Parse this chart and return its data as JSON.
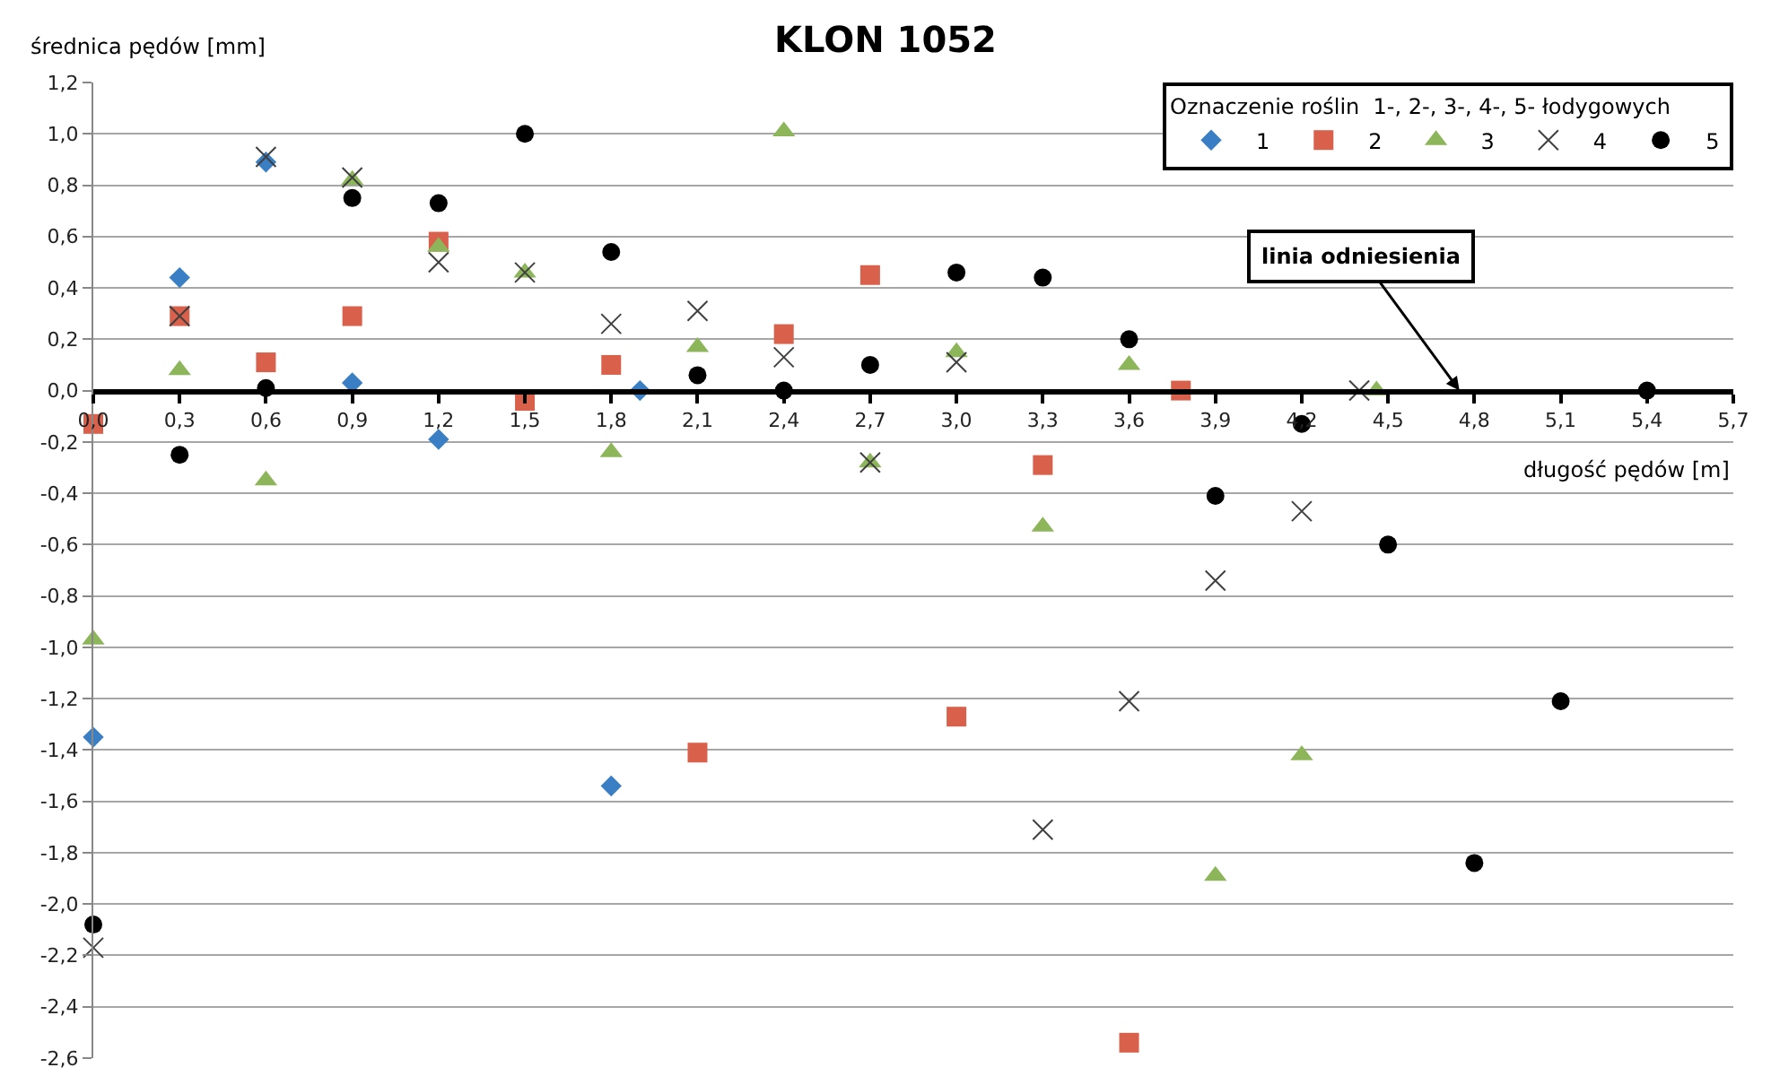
{
  "chart_data": {
    "type": "scatter",
    "title": "KLON 1052",
    "xlabel": "długość pędów [m]",
    "ylabel": "średnica pędów [mm]",
    "legend_title": "Oznaczenie roślin  1-, 2-, 3-, 4-, 5- łodygowych",
    "legend": "top right",
    "grid": "y",
    "xlim": [
      0,
      5.7
    ],
    "xticks": [
      {
        "value": 0,
        "label": "0,0"
      },
      {
        "value": 0.3,
        "label": "0,3"
      },
      {
        "value": 0.6,
        "label": "0,6"
      },
      {
        "value": 0.9,
        "label": "0,9"
      },
      {
        "value": 1.2,
        "label": "1,2"
      },
      {
        "value": 1.5,
        "label": "1,5"
      },
      {
        "value": 1.8,
        "label": "1,8"
      },
      {
        "value": 2.1,
        "label": "2,1"
      },
      {
        "value": 2.4,
        "label": "2,4"
      },
      {
        "value": 2.7,
        "label": "2,7"
      },
      {
        "value": 3.0,
        "label": "3,0"
      },
      {
        "value": 3.3,
        "label": "3,3"
      },
      {
        "value": 3.6,
        "label": "3,6"
      },
      {
        "value": 3.9,
        "label": "3,9"
      },
      {
        "value": 4.2,
        "label": "4,2"
      },
      {
        "value": 4.5,
        "label": "4,5"
      },
      {
        "value": 4.8,
        "label": "4,8"
      },
      {
        "value": 5.1,
        "label": "5,1"
      },
      {
        "value": 5.4,
        "label": "5,4"
      },
      {
        "value": 5.7,
        "label": "5,7"
      }
    ],
    "ylim": [
      -2.6,
      1.2
    ],
    "yticks": [
      {
        "value": 1.2,
        "label": "1,2"
      },
      {
        "value": 1.0,
        "label": "1,0"
      },
      {
        "value": 0.8,
        "label": "0,8"
      },
      {
        "value": 0.6,
        "label": "0,6"
      },
      {
        "value": 0.4,
        "label": "0,4"
      },
      {
        "value": 0.2,
        "label": "0,2"
      },
      {
        "value": 0,
        "label": "0,0"
      },
      {
        "value": -0.2,
        "label": "-0,2"
      },
      {
        "value": -0.4,
        "label": "-0,4"
      },
      {
        "value": -0.6,
        "label": "-0,6"
      },
      {
        "value": -0.8,
        "label": "-0,8"
      },
      {
        "value": -1.0,
        "label": "-1,0"
      },
      {
        "value": -1.2,
        "label": "-1,2"
      },
      {
        "value": -1.4,
        "label": "-1,4"
      },
      {
        "value": -1.6,
        "label": "-1,6"
      },
      {
        "value": -1.8,
        "label": "-1,8"
      },
      {
        "value": -2.0,
        "label": "-2,0"
      },
      {
        "value": -2.2,
        "label": "-2,2"
      },
      {
        "value": -2.4,
        "label": "-2,4"
      },
      {
        "value": -2.6,
        "label": "-2,6"
      }
    ],
    "annotations": [
      "linia odniesienia"
    ],
    "series": [
      {
        "name": "1",
        "color": "#3a7fc4",
        "marker": "diamond",
        "x": [
          0,
          0.3,
          0.6,
          0.9,
          1.2,
          1.5,
          1.8,
          1.9
        ],
        "values": [
          -1.35,
          0.44,
          0.89,
          0.03,
          -0.19,
          null,
          -1.54,
          0.0
        ]
      },
      {
        "name": "2",
        "color": "#d9604a",
        "marker": "square",
        "x": [
          0,
          0.3,
          0.6,
          0.9,
          1.2,
          1.5,
          1.8,
          2.1,
          2.4,
          2.7,
          3.0,
          3.3,
          3.6,
          3.78
        ],
        "values": [
          -0.13,
          0.29,
          0.11,
          0.29,
          0.58,
          -0.04,
          0.1,
          -1.41,
          0.22,
          0.45,
          -1.27,
          -0.29,
          -2.54,
          0.0
        ]
      },
      {
        "name": "3",
        "color": "#8db55a",
        "marker": "triangle",
        "x": [
          0,
          0.3,
          0.6,
          0.9,
          1.2,
          1.5,
          1.8,
          2.1,
          2.4,
          2.7,
          3.0,
          3.3,
          3.6,
          3.9,
          4.2,
          4.46
        ],
        "values": [
          -0.97,
          0.08,
          -0.35,
          0.82,
          0.56,
          0.46,
          -0.24,
          0.17,
          1.01,
          -0.28,
          0.15,
          -0.53,
          0.1,
          -1.89,
          -1.42,
          0.0
        ]
      },
      {
        "name": "4",
        "color": "#404040",
        "marker": "cross",
        "x": [
          0,
          0.3,
          0.6,
          0.9,
          1.2,
          1.5,
          1.8,
          2.1,
          2.4,
          2.7,
          3.0,
          3.3,
          3.6,
          3.9,
          4.2,
          4.4
        ],
        "values": [
          -2.17,
          0.29,
          0.91,
          0.83,
          0.5,
          0.46,
          0.26,
          0.31,
          0.13,
          -0.28,
          0.11,
          -1.71,
          -1.21,
          -0.74,
          -0.47,
          0.0
        ]
      },
      {
        "name": "5",
        "color": "#000000",
        "marker": "circle",
        "x": [
          0,
          0.3,
          0.6,
          0.9,
          1.2,
          1.5,
          1.8,
          2.1,
          2.4,
          2.7,
          3.0,
          3.3,
          3.6,
          3.9,
          4.2,
          4.5,
          4.8,
          5.1,
          5.4
        ],
        "values": [
          -2.08,
          -0.25,
          0.01,
          0.75,
          0.73,
          1.0,
          0.54,
          0.06,
          0.0,
          0.1,
          0.46,
          0.44,
          0.2,
          -0.41,
          -0.13,
          -0.6,
          -1.84,
          -1.21,
          0.0
        ]
      }
    ]
  }
}
